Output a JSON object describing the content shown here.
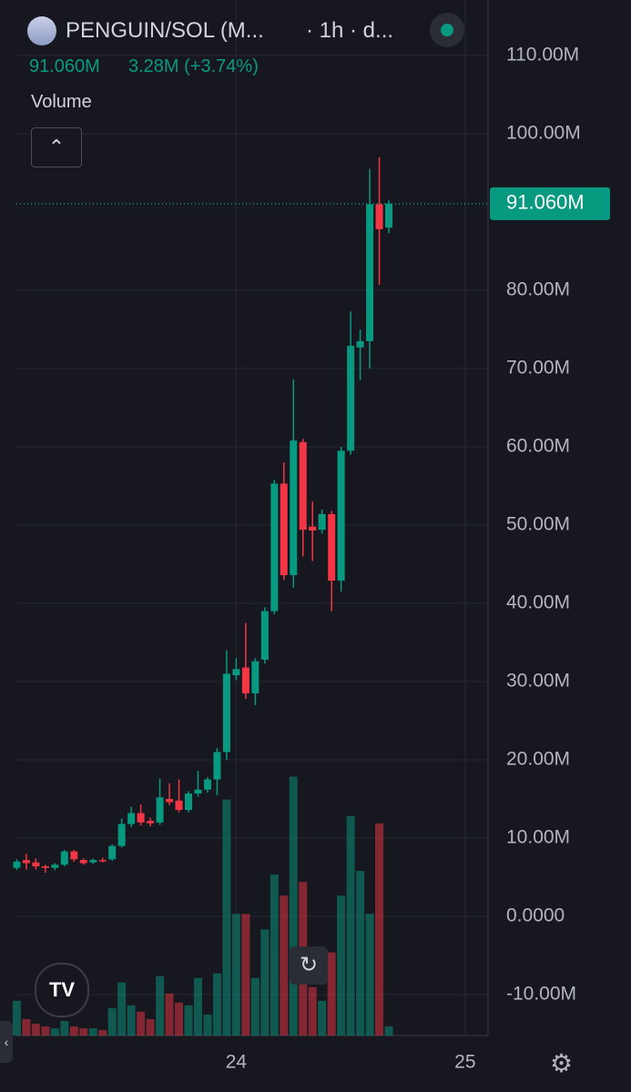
{
  "header": {
    "symbol": "PENGUIN/SOL (M...",
    "interval": "· 1h · d..."
  },
  "legend": {
    "price": "91.060M",
    "change": "3.28M (+3.74%)",
    "volume": "Volume"
  },
  "chart_data": {
    "type": "candlestick",
    "x": [
      23.0417,
      23.0833,
      23.125,
      23.1667,
      23.2083,
      23.25,
      23.2917,
      23.3333,
      23.375,
      23.4167,
      23.4583,
      23.5,
      23.5417,
      23.5833,
      23.625,
      23.6667,
      23.7083,
      23.75,
      23.7917,
      23.8333,
      23.875,
      23.9167,
      23.9583,
      24,
      24.0417,
      24.0833,
      24.125,
      24.1667,
      24.2083,
      24.25,
      24.2917,
      24.3333,
      24.375,
      24.4167,
      24.4583,
      24.5,
      24.5417,
      24.5833,
      24.625,
      24.6667
    ],
    "open": [
      6.2,
      7.2,
      6.9,
      6.4,
      6.2,
      6.6,
      8.3,
      7.2,
      6.9,
      7.2,
      7.3,
      9.0,
      11.8,
      13.2,
      12.2,
      12.0,
      15.0,
      14.8,
      13.6,
      15.7,
      16.2,
      17.5,
      21.0,
      30.8,
      31.8,
      28.5,
      32.8,
      39.0,
      55.3,
      43.6,
      60.6,
      49.8,
      49.4,
      51.4,
      42.9,
      59.5,
      72.7,
      73.5,
      91.0,
      88.0
    ],
    "high": [
      7.3,
      8.0,
      7.4,
      6.6,
      6.8,
      8.5,
      8.5,
      7.4,
      7.4,
      7.5,
      9.2,
      12.5,
      14.0,
      14.3,
      12.6,
      17.6,
      17.0,
      17.5,
      16.0,
      18.6,
      17.8,
      21.5,
      34.0,
      33.0,
      37.5,
      33.0,
      39.5,
      55.8,
      58.0,
      68.6,
      61.0,
      53.0,
      52.0,
      51.8,
      60.0,
      77.3,
      75.0,
      95.5,
      97.0,
      91.5
    ],
    "low": [
      5.9,
      6.0,
      6.0,
      5.6,
      5.9,
      6.4,
      7.0,
      6.6,
      6.7,
      6.9,
      7.1,
      8.8,
      11.4,
      11.6,
      11.5,
      11.7,
      14.2,
      13.3,
      13.3,
      15.3,
      15.8,
      15.5,
      20.0,
      30.2,
      27.8,
      27.0,
      32.3,
      38.6,
      43.0,
      42.0,
      46.0,
      45.4,
      48.9,
      39.0,
      41.5,
      59.0,
      68.5,
      70.0,
      80.7,
      87.3
    ],
    "close": [
      7.0,
      6.8,
      6.4,
      6.2,
      6.6,
      8.3,
      7.3,
      6.8,
      7.2,
      7.1,
      9.0,
      11.8,
      13.2,
      12.0,
      11.9,
      15.2,
      14.6,
      13.6,
      15.7,
      16.2,
      17.5,
      21.0,
      31.0,
      31.6,
      28.5,
      32.6,
      39.0,
      55.3,
      43.6,
      60.8,
      49.4,
      49.3,
      51.4,
      42.9,
      59.5,
      72.9,
      73.5,
      91.0,
      87.8,
      91.06
    ],
    "volume": [
      38,
      18,
      13,
      10,
      8,
      16,
      10,
      8,
      8,
      6,
      30,
      58,
      33,
      26,
      18,
      65,
      46,
      36,
      33,
      63,
      23,
      68,
      258,
      133,
      133,
      63,
      116,
      176,
      153,
      283,
      168,
      53,
      38,
      91,
      153,
      240,
      180,
      133,
      232,
      10
    ],
    "ylim": [
      -15.23,
      117.09
    ],
    "yticks": [
      {
        "value": 110,
        "label": "110.00M"
      },
      {
        "value": 100,
        "label": "100.00M"
      },
      {
        "value": 80,
        "label": "80.00M"
      },
      {
        "value": 70,
        "label": "70.00M"
      },
      {
        "value": 60,
        "label": "60.00M"
      },
      {
        "value": 50,
        "label": "50.00M"
      },
      {
        "value": 40,
        "label": "40.00M"
      },
      {
        "value": 30,
        "label": "30.00M"
      },
      {
        "value": 20,
        "label": "20.00M"
      },
      {
        "value": 10,
        "label": "10.00M"
      },
      {
        "value": 0,
        "label": "0.0000"
      },
      {
        "value": -10,
        "label": "-10.00M"
      }
    ],
    "xlim": [
      23.04,
      25.1
    ],
    "xticks": [
      24,
      25
    ],
    "last_price": {
      "value": 91.06,
      "label": "91.060M"
    },
    "up_color": "#089981",
    "down_color": "#f23645",
    "grid": true
  }
}
